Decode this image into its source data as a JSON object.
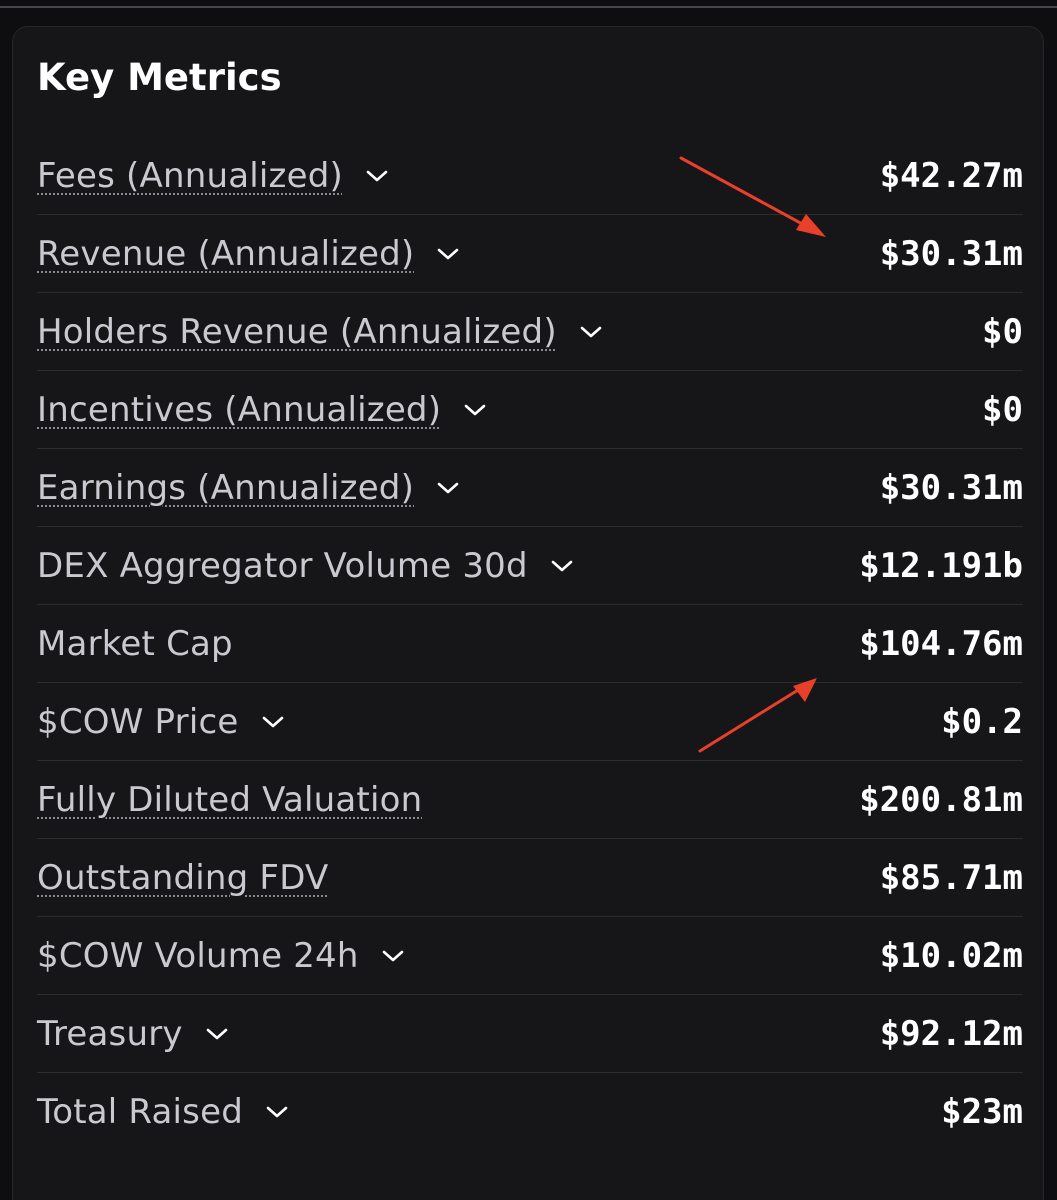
{
  "card": {
    "title": "Key Metrics"
  },
  "colors": {
    "background": "#0e0e10",
    "card": "#161618",
    "label": "#c9c9cf",
    "value": "#ffffff",
    "annotation_arrow": "#e8402a"
  },
  "icons": {
    "dropdown": "chevron-down-icon",
    "annotation": "arrow-icon"
  },
  "metrics": [
    {
      "label": "Fees (Annualized)",
      "value": "$42.27m"
    },
    {
      "label": "Revenue (Annualized)",
      "value": "$30.31m"
    },
    {
      "label": "Holders Revenue (Annualized)",
      "value": "$0"
    },
    {
      "label": "Incentives (Annualized)",
      "value": "$0"
    },
    {
      "label": "Earnings (Annualized)",
      "value": "$30.31m"
    },
    {
      "label": "DEX Aggregator Volume 30d",
      "value": "$12.191b"
    },
    {
      "label": "Market Cap",
      "value": "$104.76m"
    },
    {
      "label": "$COW Price",
      "value": "$0.2"
    },
    {
      "label": "Fully Diluted Valuation",
      "value": "$200.81m"
    },
    {
      "label": "Outstanding FDV",
      "value": "$85.71m"
    },
    {
      "label": "$COW Volume 24h",
      "value": "$10.02m"
    },
    {
      "label": "Treasury",
      "value": "$92.12m"
    },
    {
      "label": "Total Raised",
      "value": "$23m"
    }
  ]
}
